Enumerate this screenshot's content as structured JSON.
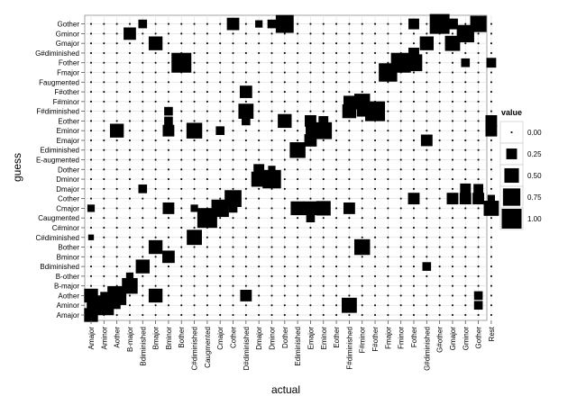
{
  "chart_data": {
    "type": "scatter",
    "title": "",
    "xlabel": "actual",
    "ylabel": "guess",
    "grid": true,
    "legend_position": "right",
    "x_categories": [
      "Amajor",
      "Aminor",
      "Aother",
      "B-major",
      "Bdiminished",
      "Bmajor",
      "Bminor",
      "Bother",
      "C#diminished",
      "Caugmented",
      "Cmajor",
      "Cother",
      "D#diminished",
      "Dmajor",
      "Dminor",
      "Dother",
      "Ediminished",
      "Emajor",
      "Eminor",
      "Eother",
      "F#diminished",
      "F#minor",
      "F#other",
      "Fmajor",
      "Fminor",
      "Fother",
      "G#diminished",
      "G#other",
      "Gmajor",
      "Gminor",
      "Gother",
      "Rest"
    ],
    "y_categories": [
      "Amajor",
      "Aminor",
      "Aother",
      "B-major",
      "B-other",
      "Bdiminished",
      "Bminor",
      "Bother",
      "C#diminished",
      "C#minor",
      "Caugmented",
      "Cmajor",
      "Cother",
      "Dmajor",
      "Dminor",
      "Dother",
      "E-augmented",
      "Ediminished",
      "Emajor",
      "Eminor",
      "Eother",
      "F#diminished",
      "F#minor",
      "F#other",
      "Faugmented",
      "Fmajor",
      "Fother",
      "G#diminished",
      "Gmajor",
      "Gminor",
      "Gother"
    ],
    "legend": {
      "title": "value",
      "entries": [
        {
          "value": 0.0,
          "label": "0.00"
        },
        {
          "value": 0.25,
          "label": "0.25"
        },
        {
          "value": 0.5,
          "label": "0.50"
        },
        {
          "value": 0.75,
          "label": "0.75"
        },
        {
          "value": 1.0,
          "label": "1.00"
        }
      ]
    },
    "cells": [
      {
        "x": "Amajor",
        "y": "Amajor",
        "value": 0.45
      },
      {
        "x": "Amajor",
        "y": "Aother",
        "value": 0.45
      },
      {
        "x": "Amajor",
        "y": "Aminor",
        "value": 0.15
      },
      {
        "x": "Amajor",
        "y": "Cmajor",
        "value": 0.1
      },
      {
        "x": "Amajor",
        "y": "C#diminished",
        "value": 0.05
      },
      {
        "x": "Aminor",
        "y": "Aminor",
        "value": 1.0
      },
      {
        "x": "Aminor",
        "y": "Aother",
        "value": 0.1
      },
      {
        "x": "Aother",
        "y": "Aother",
        "value": 0.9
      },
      {
        "x": "Aother",
        "y": "Eminor",
        "value": 0.45
      },
      {
        "x": "Aother",
        "y": "Aminor",
        "value": 0.1
      },
      {
        "x": "B-major",
        "y": "B-major",
        "value": 0.6
      },
      {
        "x": "B-major",
        "y": "Gminor",
        "value": 0.35
      },
      {
        "x": "B-major",
        "y": "B-other",
        "value": 0.1
      },
      {
        "x": "Bdiminished",
        "y": "Bdiminished",
        "value": 0.45
      },
      {
        "x": "Bdiminished",
        "y": "Gother",
        "value": 0.15
      },
      {
        "x": "Bdiminished",
        "y": "Dmajor",
        "value": 0.15
      },
      {
        "x": "Bmajor",
        "y": "Bother",
        "value": 0.45
      },
      {
        "x": "Bmajor",
        "y": "Aother",
        "value": 0.45
      },
      {
        "x": "Bmajor",
        "y": "Gmajor",
        "value": 0.45
      },
      {
        "x": "Bminor",
        "y": "Bminor",
        "value": 0.35
      },
      {
        "x": "Bminor",
        "y": "Eminor",
        "value": 0.3
      },
      {
        "x": "Bminor",
        "y": "Cmajor",
        "value": 0.3
      },
      {
        "x": "Bminor",
        "y": "Eother",
        "value": 0.15
      },
      {
        "x": "Bminor",
        "y": "F#diminished",
        "value": 0.15
      },
      {
        "x": "Bother",
        "y": "Fother",
        "value": 1.0
      },
      {
        "x": "C#diminished",
        "y": "C#diminished",
        "value": 0.55
      },
      {
        "x": "C#diminished",
        "y": "Eminor",
        "value": 0.6
      },
      {
        "x": "C#diminished",
        "y": "Cmajor",
        "value": 0.1
      },
      {
        "x": "Caugmented",
        "y": "Caugmented",
        "value": 1.0
      },
      {
        "x": "Cmajor",
        "y": "Cmajor",
        "value": 0.75
      },
      {
        "x": "Cmajor",
        "y": "Eminor",
        "value": 0.15
      },
      {
        "x": "Cother",
        "y": "Cother",
        "value": 0.7
      },
      {
        "x": "Cother",
        "y": "Gother",
        "value": 0.35
      },
      {
        "x": "Cother",
        "y": "Cmajor",
        "value": 0.15
      },
      {
        "x": "D#diminished",
        "y": "F#diminished",
        "value": 0.55
      },
      {
        "x": "D#diminished",
        "y": "F#other",
        "value": 0.35
      },
      {
        "x": "D#diminished",
        "y": "Aother",
        "value": 0.3
      },
      {
        "x": "D#diminished",
        "y": "Eother",
        "value": 0.15
      },
      {
        "x": "Dmajor",
        "y": "Dminor",
        "value": 0.55
      },
      {
        "x": "Dmajor",
        "y": "Dother",
        "value": 0.25
      },
      {
        "x": "Dmajor",
        "y": "Gother",
        "value": 0.1
      },
      {
        "x": "Dminor",
        "y": "Dminor",
        "value": 0.85
      },
      {
        "x": "Dminor",
        "y": "Dother",
        "value": 0.1
      },
      {
        "x": "Dminor",
        "y": "Gother",
        "value": 0.15
      },
      {
        "x": "Dother",
        "y": "Gother",
        "value": 0.8
      },
      {
        "x": "Dother",
        "y": "Eother",
        "value": 0.45
      },
      {
        "x": "Ediminished",
        "y": "Ediminished",
        "value": 0.6
      },
      {
        "x": "Ediminished",
        "y": "Cmajor",
        "value": 0.45
      },
      {
        "x": "Emajor",
        "y": "Cmajor",
        "value": 0.45
      },
      {
        "x": "Emajor",
        "y": "Emajor",
        "value": 0.35
      },
      {
        "x": "Emajor",
        "y": "Eother",
        "value": 0.3
      },
      {
        "x": "Emajor",
        "y": "Eminor",
        "value": 0.2
      },
      {
        "x": "Emajor",
        "y": "Caugmented",
        "value": 0.15
      },
      {
        "x": "Eminor",
        "y": "Eminor",
        "value": 0.7
      },
      {
        "x": "Eminor",
        "y": "Cmajor",
        "value": 0.5
      },
      {
        "x": "Eminor",
        "y": "Eother",
        "value": 0.2
      },
      {
        "x": "F#diminished",
        "y": "Aminor",
        "value": 0.55
      },
      {
        "x": "F#diminished",
        "y": "Cmajor",
        "value": 0.3
      },
      {
        "x": "F#diminished",
        "y": "F#diminished",
        "value": 0.45
      },
      {
        "x": "F#diminished",
        "y": "F#minor",
        "value": 0.3
      },
      {
        "x": "F#minor",
        "y": "F#minor",
        "value": 0.6
      },
      {
        "x": "F#minor",
        "y": "Bother",
        "value": 0.6
      },
      {
        "x": "F#minor",
        "y": "F#diminished",
        "value": 0.25
      },
      {
        "x": "F#other",
        "y": "F#diminished",
        "value": 1.0
      },
      {
        "x": "Fmajor",
        "y": "Fmajor",
        "value": 0.85
      },
      {
        "x": "Fminor",
        "y": "Fother",
        "value": 1.0
      },
      {
        "x": "Fother",
        "y": "Fother",
        "value": 0.7
      },
      {
        "x": "Fother",
        "y": "Cother",
        "value": 0.3
      },
      {
        "x": "Fother",
        "y": "G#diminished",
        "value": 0.25
      },
      {
        "x": "Fother",
        "y": "Gother",
        "value": 0.25
      },
      {
        "x": "G#diminished",
        "y": "Gmajor",
        "value": 0.45
      },
      {
        "x": "G#diminished",
        "y": "Emajor",
        "value": 0.3
      },
      {
        "x": "G#diminished",
        "y": "Bdiminished",
        "value": 0.15
      },
      {
        "x": "G#other",
        "y": "Gother",
        "value": 1.0
      },
      {
        "x": "Gmajor",
        "y": "Gmajor",
        "value": 0.55
      },
      {
        "x": "Gmajor",
        "y": "Gother",
        "value": 0.25
      },
      {
        "x": "Gmajor",
        "y": "Cother",
        "value": 0.3
      },
      {
        "x": "Gminor",
        "y": "Gminor",
        "value": 0.75
      },
      {
        "x": "Gminor",
        "y": "Cother",
        "value": 0.3
      },
      {
        "x": "Gminor",
        "y": "Dmajor",
        "value": 0.25
      },
      {
        "x": "Gminor",
        "y": "Fother",
        "value": 0.15
      },
      {
        "x": "Gother",
        "y": "Gother",
        "value": 0.65
      },
      {
        "x": "Gother",
        "y": "Cother",
        "value": 0.3
      },
      {
        "x": "Gother",
        "y": "Dmajor",
        "value": 0.2
      },
      {
        "x": "Gother",
        "y": "Aother",
        "value": 0.15
      },
      {
        "x": "Gother",
        "y": "Aminor",
        "value": 0.15
      },
      {
        "x": "Rest",
        "y": "Cmajor",
        "value": 0.55
      },
      {
        "x": "Rest",
        "y": "Eother",
        "value": 0.3
      },
      {
        "x": "Rest",
        "y": "Eminor",
        "value": 0.3
      },
      {
        "x": "Rest",
        "y": "Fother",
        "value": 0.2
      },
      {
        "x": "Rest",
        "y": "Cother",
        "value": 0.1
      }
    ]
  }
}
